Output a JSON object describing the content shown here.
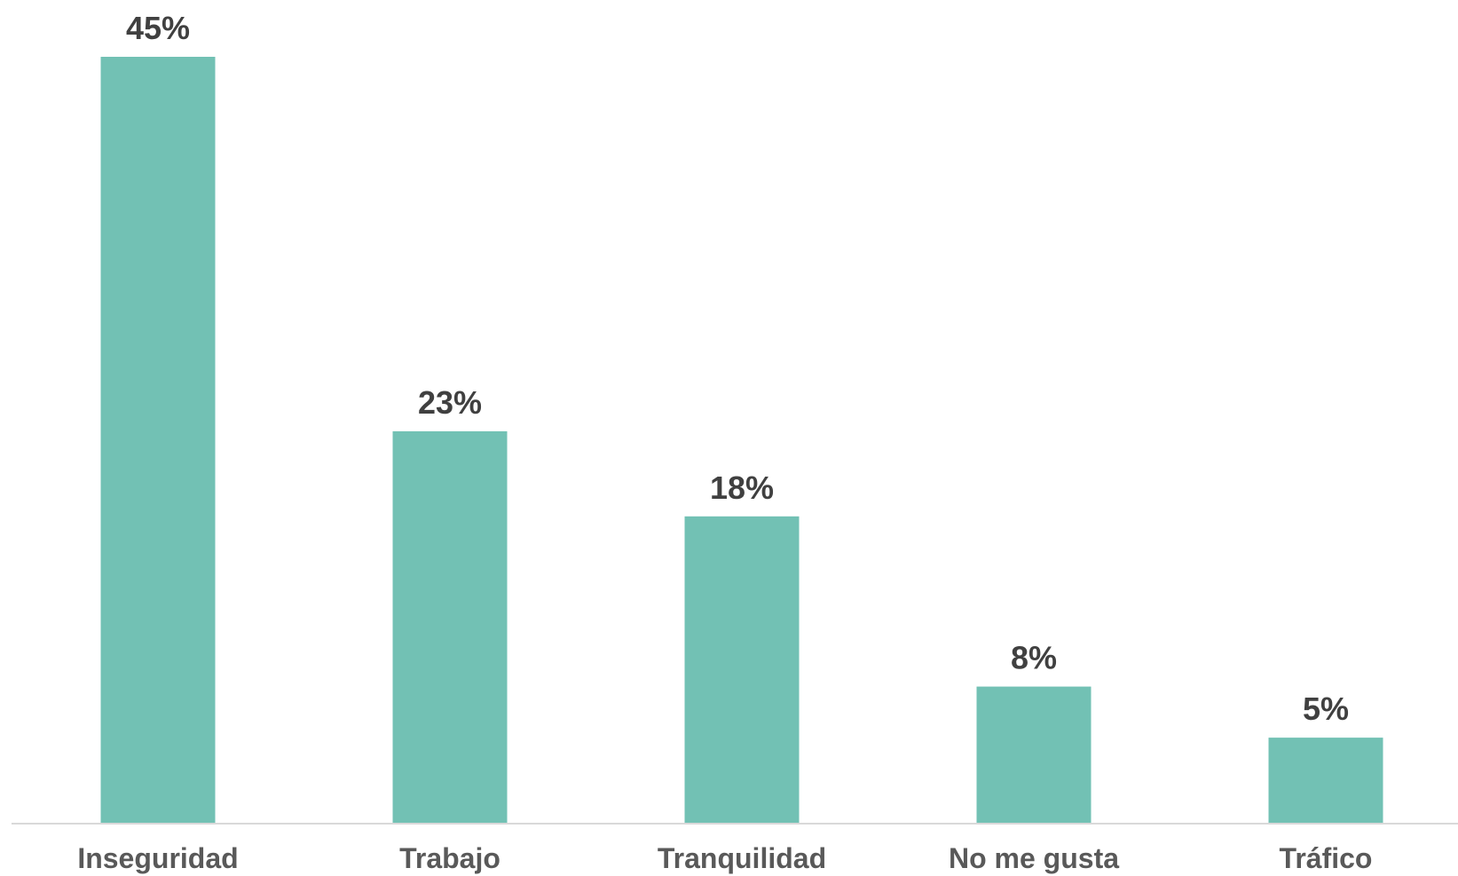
{
  "chart_data": {
    "type": "bar",
    "categories": [
      "Inseguridad",
      "Trabajo",
      "Tranquilidad",
      "No me gusta",
      "Tráfico"
    ],
    "values": [
      45,
      23,
      18,
      8,
      5
    ],
    "data_labels": [
      "45%",
      "23%",
      "18%",
      "8%",
      "5%"
    ],
    "ylim": [
      0,
      45
    ],
    "grid": false,
    "legend": "none",
    "colors": {
      "bar": "#72c1b4",
      "axis": "#d9d9d9",
      "value_label": "#404040",
      "category_label": "#595959"
    }
  }
}
